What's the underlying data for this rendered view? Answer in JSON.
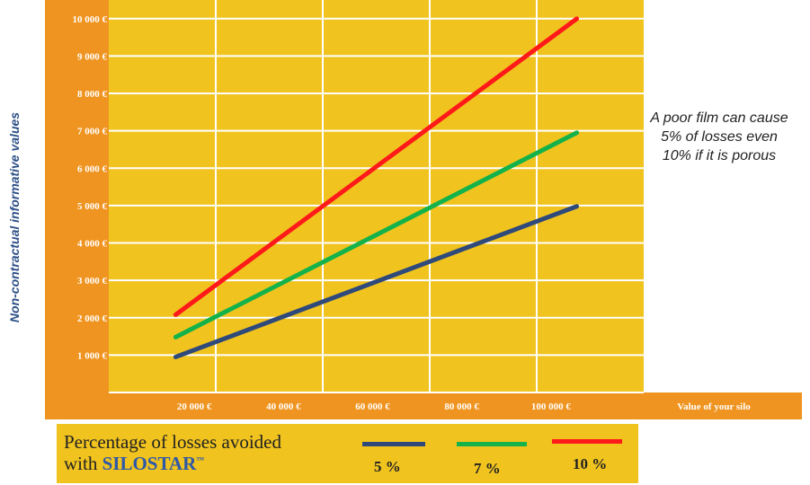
{
  "chart_data": {
    "type": "line",
    "x": [
      15000,
      105000
    ],
    "series": [
      {
        "name": "5 %",
        "color": "#2f4a7a",
        "values": [
          950,
          4980
        ]
      },
      {
        "name": "7 %",
        "color": "#13b24a",
        "values": [
          1480,
          6950
        ]
      },
      {
        "name": "10 %",
        "color": "#ff1a1a",
        "values": [
          2080,
          10000
        ]
      }
    ],
    "xlim": [
      0,
      120000
    ],
    "ylim": [
      0,
      10500
    ],
    "x_ticks": [
      {
        "value": 20000,
        "label": "20 000 €"
      },
      {
        "value": 40000,
        "label": "40 000 €"
      },
      {
        "value": 60000,
        "label": "60 000 €"
      },
      {
        "value": 80000,
        "label": "80 000 €"
      },
      {
        "value": 100000,
        "label": "100 000 €"
      }
    ],
    "y_ticks": [
      {
        "value": 1000,
        "label": "1 000 €"
      },
      {
        "value": 2000,
        "label": "2 000 €"
      },
      {
        "value": 3000,
        "label": "3 000 €"
      },
      {
        "value": 4000,
        "label": "4 000 €"
      },
      {
        "value": 5000,
        "label": "5 000 €"
      },
      {
        "value": 6000,
        "label": "6 000 €"
      },
      {
        "value": 7000,
        "label": "7 000 €"
      },
      {
        "value": 8000,
        "label": "8 000 €"
      },
      {
        "value": 9000,
        "label": "9 000 €"
      },
      {
        "value": 10000,
        "label": "10 000 €"
      }
    ],
    "xlabel": "Value of your silo",
    "ylabel": "Non-contractual informative values",
    "grid": true,
    "colors": {
      "plot_bg": "#f0c31f",
      "axis_band": "#ef9420",
      "grid": "#ffffff"
    }
  },
  "annotation": {
    "line1": "A poor film can cause",
    "line2": "5% of losses even",
    "line3": "10% if it is porous"
  },
  "legend": {
    "text_line1": "Percentage of losses avoided",
    "text_with": "with",
    "brand": "SILOSTAR",
    "trademark": "™",
    "items": [
      {
        "label": "5 %",
        "color": "#2f4a7a"
      },
      {
        "label": "7 %",
        "color": "#13b24a"
      },
      {
        "label": "10 %",
        "color": "#ff1a1a"
      }
    ]
  }
}
